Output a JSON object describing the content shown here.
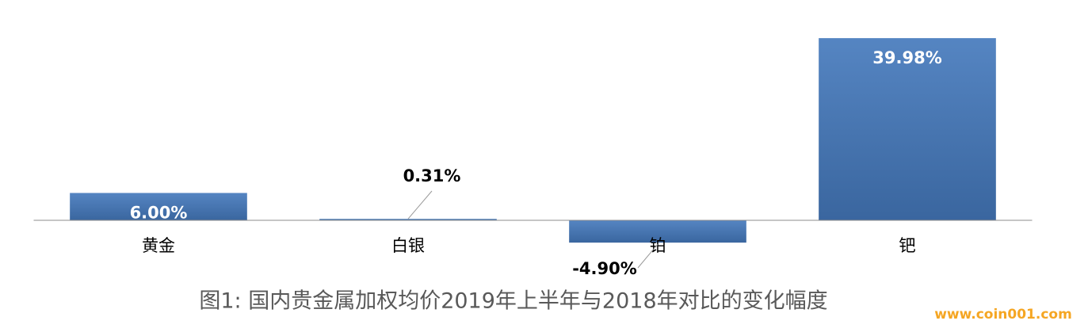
{
  "chart_data": {
    "type": "bar",
    "title": "图1: 国内贵金属加权均价2019年上半年与2018年对比的变化幅度",
    "categories": [
      "黄金",
      "白银",
      "铂",
      "钯"
    ],
    "values": [
      6.0,
      0.31,
      -4.9,
      39.98
    ],
    "value_labels": [
      "6.00%",
      "0.31%",
      "-4.90%",
      "39.98%"
    ],
    "color": "#4a78b4",
    "ylim": [
      -10,
      40
    ],
    "grid": false
  },
  "watermark": "www.coin001.com"
}
